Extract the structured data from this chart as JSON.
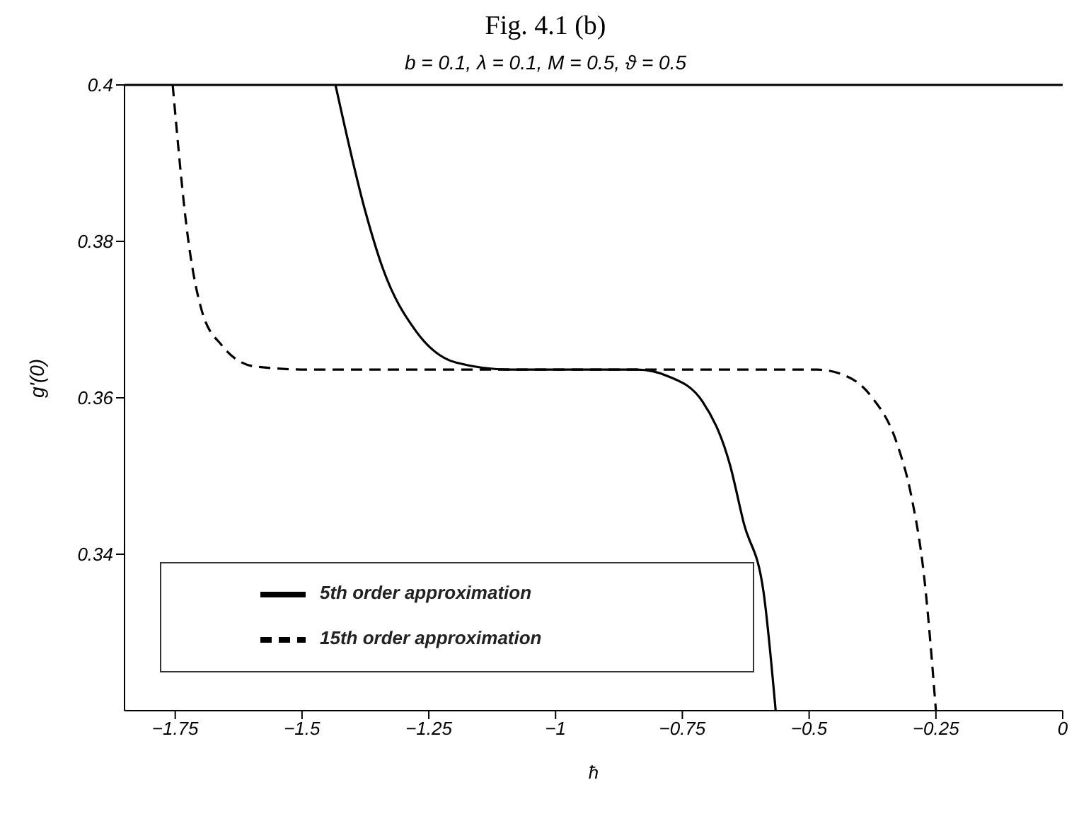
{
  "chart_data": {
    "type": "line",
    "title": "Fig. 4.1 (b)",
    "subtitle": "b = 0.1, λ = 0.1, M = 0.5, ϑ = 0.5",
    "xlabel": "ħ",
    "ylabel": "g'(0)",
    "xlim": [
      -1.85,
      0
    ],
    "xticks": [
      {
        "value": -1.75,
        "label": "−1.75"
      },
      {
        "value": -1.5,
        "label": "−1.5"
      },
      {
        "value": -1.25,
        "label": "−1.25"
      },
      {
        "value": -1,
        "label": "−1"
      },
      {
        "value": -0.75,
        "label": "−0.75"
      },
      {
        "value": -0.5,
        "label": "−0.5"
      },
      {
        "value": -0.25,
        "label": "−0.25"
      },
      0
    ],
    "ylim": [
      0.32,
      0.4
    ],
    "yticks": [
      0.34,
      0.36,
      0.38,
      0.4
    ],
    "grid": false,
    "legend": "bottom left",
    "marker": "none",
    "series": [
      {
        "name": "5th order approximation",
        "color": "#000000",
        "line_style": "solid",
        "x": [
          -1.434,
          -1.375,
          -1.341,
          -1.275,
          -1.196,
          -1.09,
          -0.84,
          -0.776,
          -0.71,
          -0.656,
          -0.629,
          -0.59,
          -0.566
        ],
        "values": [
          0.4,
          0.3838,
          0.3766,
          0.3685,
          0.3645,
          0.3636,
          0.3636,
          0.3627,
          0.3595,
          0.3514,
          0.344,
          0.3352,
          0.32
        ]
      },
      {
        "name": "15th order approximation",
        "color": "#000000",
        "line_style": "dashed",
        "x": [
          -1.755,
          -1.724,
          -1.697,
          -1.658,
          -1.592,
          -1.486,
          -0.484,
          -0.431,
          -0.379,
          -0.326,
          -0.299,
          -0.273,
          -0.25
        ],
        "values": [
          0.4,
          0.38,
          0.371,
          0.3667,
          0.364,
          0.3636,
          0.3636,
          0.3629,
          0.3603,
          0.354,
          0.3476,
          0.337,
          0.32
        ]
      }
    ]
  }
}
